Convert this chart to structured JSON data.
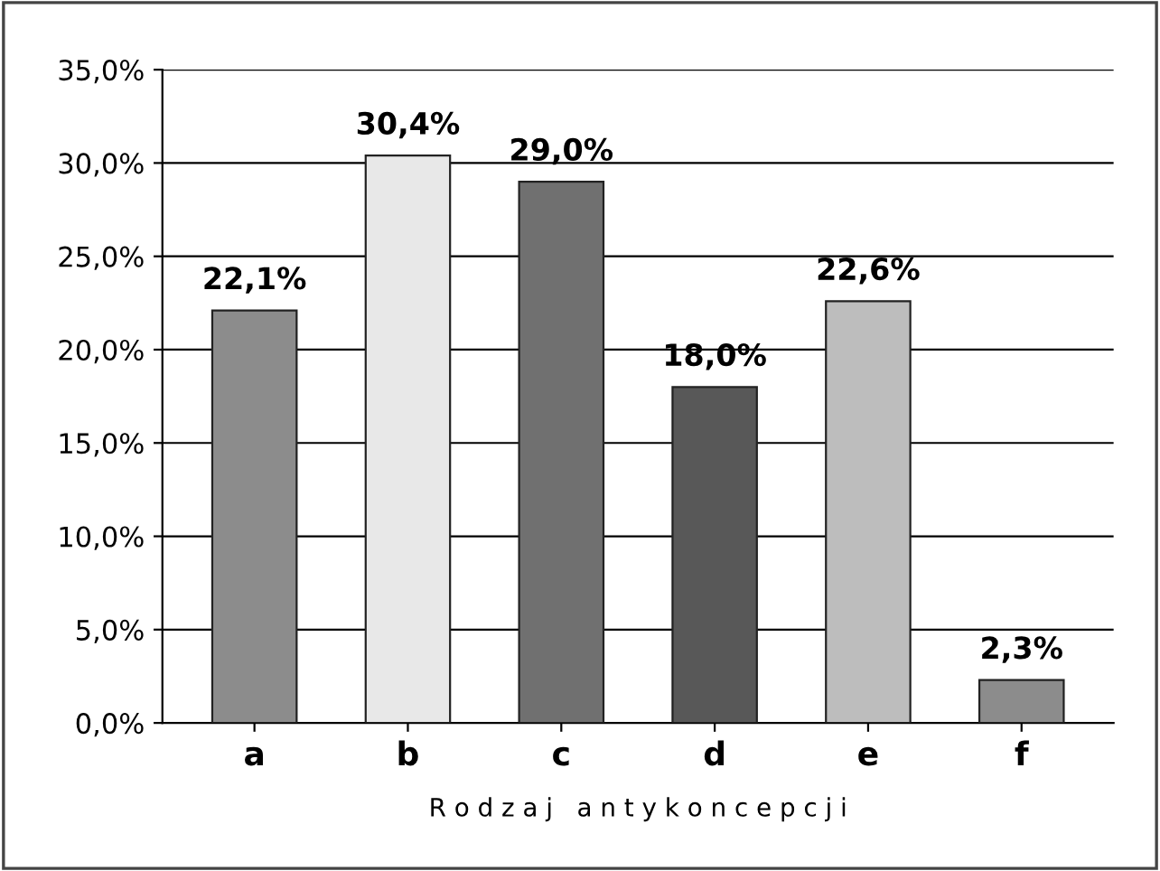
{
  "chart_data": {
    "type": "bar",
    "xlabel": "R o d z a j   a n t y k o n c e p c j i",
    "categories": [
      "a",
      "b",
      "c",
      "d",
      "e",
      "f"
    ],
    "values": [
      22.1,
      30.4,
      29.0,
      18.0,
      22.6,
      2.3
    ],
    "colors": [
      "#8c8c8c",
      "#e8e8e8",
      "#707070",
      "#585858",
      "#bdbdbd",
      "#8c8c8c"
    ],
    "value_labels": [
      "22,1%",
      "30,4%",
      "29,0%",
      "18,0%",
      "22,6%",
      "2,3%"
    ],
    "ylim": [
      0,
      35
    ],
    "yticks": [
      {
        "value": 0,
        "label": "0,0%"
      },
      {
        "value": 5,
        "label": "5,0%"
      },
      {
        "value": 10,
        "label": "10,0%"
      },
      {
        "value": 15,
        "label": "15,0%"
      },
      {
        "value": 20,
        "label": "20,0%"
      },
      {
        "value": 25,
        "label": "25,0%"
      },
      {
        "value": 30,
        "label": "30,0%"
      },
      {
        "value": 35,
        "label": "35,0%"
      }
    ],
    "grid": "y"
  }
}
